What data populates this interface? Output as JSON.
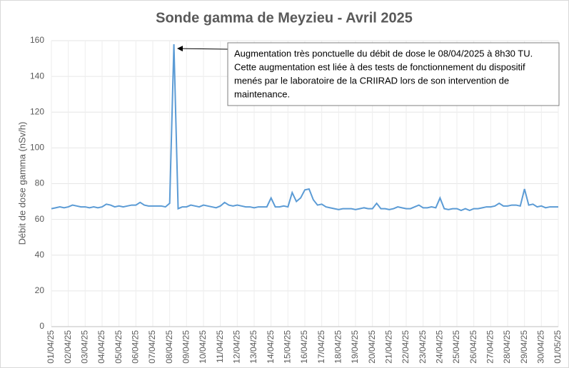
{
  "chart_data": {
    "type": "line",
    "title": "Sonde gamma de Meyzieu - Avril 2025",
    "y_label": "Débit de dose gamma (nSv/h)",
    "annotation": [
      "Augmentation très ponctuelle du débit de dose le 08/04/2025 à 8h30  TU.",
      "Cette augmentation est liée à des tests de fonctionnement du dispositif",
      "menés par le laboratoire de la CRIIRAD lors de son intervention de",
      "maintenance."
    ],
    "categories": [
      "01/04/25",
      null,
      null,
      null,
      "02/04/25",
      null,
      null,
      null,
      "03/04/25",
      null,
      null,
      null,
      "04/04/25",
      null,
      null,
      null,
      "05/04/25",
      null,
      null,
      null,
      "06/04/25",
      null,
      null,
      null,
      "07/04/25",
      null,
      null,
      null,
      "08/04/25",
      null,
      null,
      null,
      "09/04/25",
      null,
      null,
      null,
      "10/04/25",
      null,
      null,
      null,
      "11/04/25",
      null,
      null,
      null,
      "12/04/25",
      null,
      null,
      null,
      "13/04/25",
      null,
      null,
      null,
      "14/04/25",
      null,
      null,
      null,
      "15/04/25",
      null,
      null,
      null,
      "16/04/25",
      null,
      null,
      null,
      "17/04/25",
      null,
      null,
      null,
      "18/04/25",
      null,
      null,
      null,
      "19/04/25",
      null,
      null,
      null,
      "20/04/25",
      null,
      null,
      null,
      "21/04/25",
      null,
      null,
      null,
      "22/04/25",
      null,
      null,
      null,
      "23/04/25",
      null,
      null,
      null,
      "24/04/25",
      null,
      null,
      null,
      "25/04/25",
      null,
      null,
      null,
      "26/04/25",
      null,
      null,
      null,
      "27/04/25",
      null,
      null,
      null,
      "28/04/25",
      null,
      null,
      null,
      "29/04/25",
      null,
      null,
      null,
      "30/04/25",
      null,
      null,
      null,
      "01/05/25"
    ],
    "values": [
      66,
      66.5,
      67,
      66.5,
      67,
      68,
      67.5,
      67,
      67,
      66.5,
      67,
      66.5,
      67,
      68.5,
      68,
      67,
      67.5,
      67,
      67.5,
      68,
      68,
      69.5,
      68,
      67.5,
      67.5,
      67.5,
      67.5,
      67,
      69,
      158,
      66,
      67,
      67,
      68,
      67.5,
      67,
      68,
      67.5,
      67,
      66.5,
      67.5,
      69.5,
      68,
      67.5,
      68,
      67.5,
      67,
      67,
      66.5,
      67,
      67,
      67,
      72,
      67,
      67,
      67.5,
      67,
      75,
      70,
      72,
      76.5,
      77,
      71,
      68,
      68.5,
      67,
      66.5,
      66,
      65.5,
      66,
      66,
      66,
      65.5,
      66,
      66.5,
      66,
      66,
      69,
      66,
      66,
      65.5,
      66,
      67,
      66.5,
      66,
      66,
      67,
      68,
      66.5,
      66.5,
      67,
      66.5,
      72,
      66,
      65.5,
      66,
      66,
      65,
      66,
      65,
      66,
      66,
      66.5,
      67,
      67,
      67.5,
      69,
      67.5,
      67.5,
      68,
      68,
      67.5,
      77,
      68,
      68.5,
      67,
      67.5,
      66.5,
      67,
      67,
      67
    ],
    "color": "#5b9bd5",
    "ylim": [
      0,
      160
    ],
    "yticks": [
      0,
      20,
      40,
      60,
      80,
      100,
      120,
      140,
      160
    ],
    "grid": true
  }
}
